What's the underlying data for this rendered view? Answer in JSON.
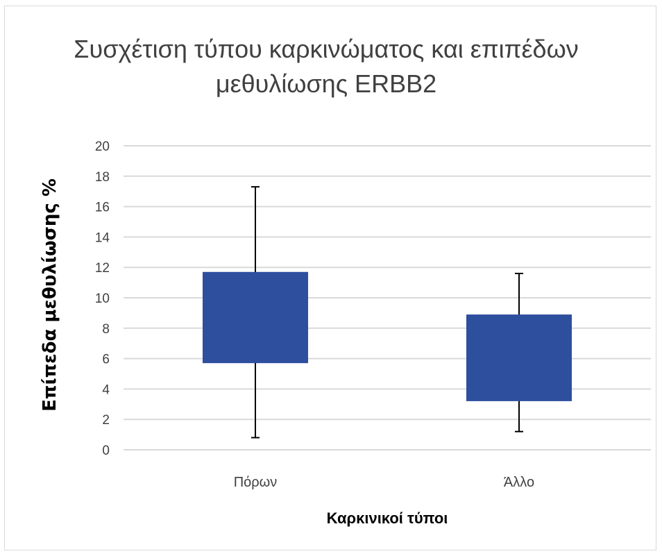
{
  "chart_data": {
    "type": "box",
    "title_line1": "Συσχέτιση τύπου καρκινώματος και επιπέδων",
    "title_line2": "μεθυλίωσης ERBB2",
    "xlabel": "Καρκινικοί τύποι",
    "ylabel": "Επίπεδα μεθυλίωσης %",
    "ylim": [
      0,
      20
    ],
    "yticks": [
      0,
      2,
      4,
      6,
      8,
      10,
      12,
      14,
      16,
      18,
      20
    ],
    "grid": true,
    "legend": "none",
    "categories": [
      "Πόρων",
      "Άλλο"
    ],
    "boxes": [
      {
        "category": "Πόρων",
        "whisker_low": 0.8,
        "box_low": 5.7,
        "box_high": 11.7,
        "whisker_high": 17.3
      },
      {
        "category": "Άλλο",
        "whisker_low": 1.2,
        "box_low": 3.2,
        "box_high": 8.9,
        "whisker_high": 11.6
      }
    ],
    "colors": {
      "box": "#2E4F9E",
      "grid": "#d9d9d9",
      "whisker": "#000000"
    }
  }
}
